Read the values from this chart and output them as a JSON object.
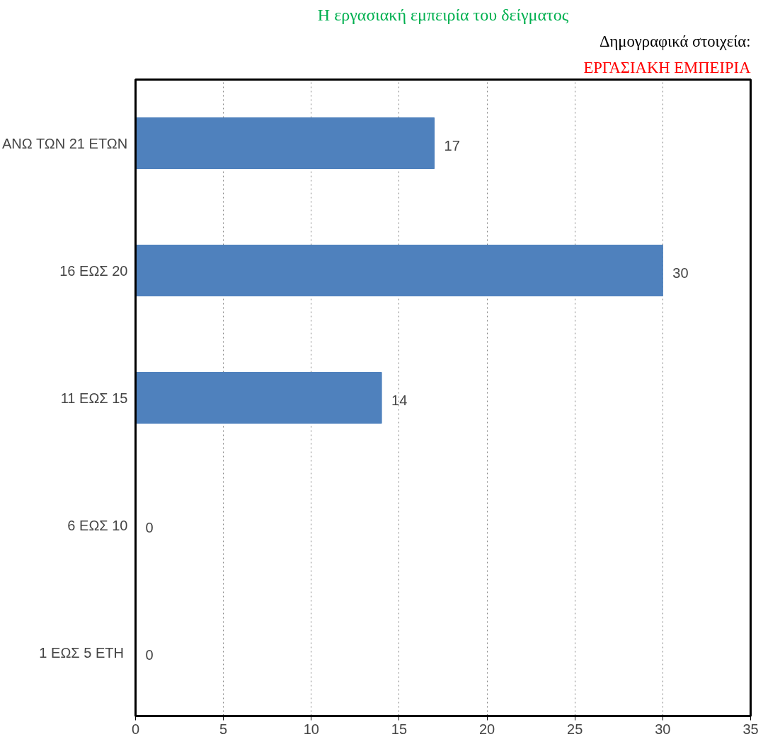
{
  "chart_data": {
    "type": "bar",
    "orientation": "horizontal",
    "title": "Η εργασιακή εμπειρία του δείγματος",
    "annotations": [
      "Δημογραφικά στοιχεία:",
      "ΕΡΓΑΣΙΑΚΗ ΕΜΠΕΙΡΙΑ"
    ],
    "categories": [
      "ΑΝΩ ΤΩΝ 21 ΕΤΩΝ",
      "16 ΕΩΣ 20",
      "11 ΕΩΣ 15",
      "6 ΕΩΣ 10",
      "1  ΕΩΣ 5 ΕΤΗ"
    ],
    "values": [
      17,
      30,
      14,
      0,
      0
    ],
    "color": "#4f81bd",
    "data_labels": true,
    "xlim": [
      0,
      35
    ],
    "xticks": [
      0,
      5,
      10,
      15,
      20,
      25,
      30,
      35
    ],
    "grid": "x"
  }
}
